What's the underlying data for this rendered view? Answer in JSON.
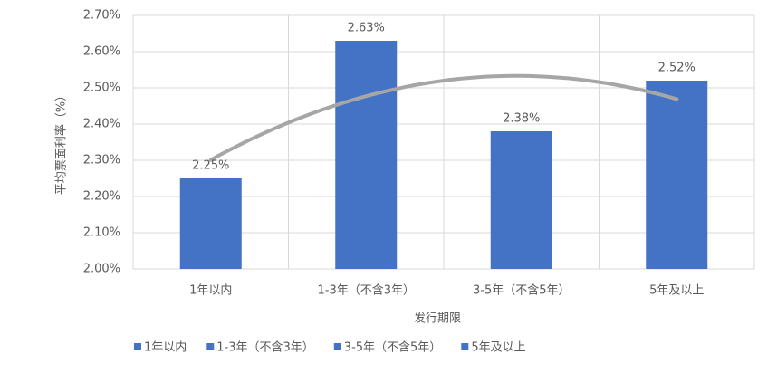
{
  "chart_data": {
    "type": "bar",
    "categories": [
      "1年以内",
      "1-3年（不含3年）",
      "3-5年（不含5年）",
      "5年及以上"
    ],
    "values": [
      2.25,
      2.63,
      2.38,
      2.52
    ],
    "value_labels": [
      "2.25%",
      "2.63%",
      "2.38%",
      "2.52%"
    ],
    "color": "#4472c4",
    "x_label": "发行期限",
    "y_label": "平均票面利率（%）",
    "ylim": [
      2.0,
      2.7
    ],
    "yticks": [
      {
        "value": 2.0,
        "label": "2.00%"
      },
      {
        "value": 2.1,
        "label": "2.10%"
      },
      {
        "value": 2.2,
        "label": "2.20%"
      },
      {
        "value": 2.3,
        "label": "2.30%"
      },
      {
        "value": 2.4,
        "label": "2.40%"
      },
      {
        "value": 2.5,
        "label": "2.50%"
      },
      {
        "value": 2.6,
        "label": "2.60%"
      },
      {
        "value": 2.7,
        "label": "2.70%"
      }
    ],
    "grid": true,
    "trendline": "polynomial",
    "trendline_color": "#a6a6a6"
  }
}
